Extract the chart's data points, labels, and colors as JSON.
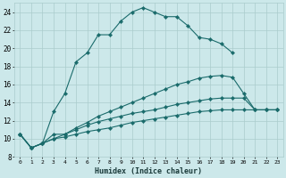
{
  "xlabel": "Humidex (Indice chaleur)",
  "bg_color": "#cce8ea",
  "grid_color": "#aacccc",
  "line_color": "#1a6b6b",
  "xlim": [
    -0.5,
    23.5
  ],
  "ylim": [
    8,
    25
  ],
  "xticks": [
    0,
    1,
    2,
    3,
    4,
    5,
    6,
    7,
    8,
    9,
    10,
    11,
    12,
    13,
    14,
    15,
    16,
    17,
    18,
    19,
    20,
    21,
    22,
    23
  ],
  "yticks": [
    8,
    10,
    12,
    14,
    16,
    18,
    20,
    22,
    24
  ],
  "line1_x": [
    0,
    1,
    2,
    3,
    4,
    5,
    6,
    7,
    8,
    9,
    10,
    11,
    12,
    13,
    14,
    15,
    16,
    17,
    18,
    19
  ],
  "line1_y": [
    10.5,
    9.0,
    9.5,
    13.0,
    15.0,
    18.5,
    19.5,
    21.5,
    21.5,
    23.0,
    24.0,
    24.5,
    24.0,
    23.5,
    23.5,
    22.5,
    21.2,
    21.0,
    20.5,
    19.5
  ],
  "line2_x": [
    0,
    1,
    2,
    3,
    4,
    5,
    6,
    7,
    8,
    9,
    10,
    11,
    12,
    13,
    14,
    15,
    16,
    17,
    18,
    19,
    20,
    21,
    22,
    23
  ],
  "line2_y": [
    10.5,
    9.0,
    9.5,
    10.5,
    10.5,
    11.2,
    11.8,
    12.5,
    13.0,
    13.5,
    14.0,
    14.5,
    15.0,
    15.5,
    16.0,
    16.3,
    16.7,
    16.9,
    17.0,
    16.8,
    15.0,
    13.2,
    13.2,
    13.2
  ],
  "line3_x": [
    0,
    1,
    2,
    3,
    4,
    5,
    6,
    7,
    8,
    9,
    10,
    11,
    12,
    13,
    14,
    15,
    16,
    17,
    18,
    19,
    20,
    21,
    22,
    23
  ],
  "line3_y": [
    10.5,
    9.0,
    9.5,
    10.0,
    10.5,
    11.0,
    11.5,
    11.9,
    12.2,
    12.5,
    12.8,
    13.0,
    13.2,
    13.5,
    13.8,
    14.0,
    14.2,
    14.4,
    14.5,
    14.5,
    14.5,
    13.2,
    13.2,
    13.2
  ],
  "line4_x": [
    0,
    1,
    2,
    3,
    4,
    5,
    6,
    7,
    8,
    9,
    10,
    11,
    12,
    13,
    14,
    15,
    16,
    17,
    18,
    19,
    20,
    21,
    22,
    23
  ],
  "line4_y": [
    10.5,
    9.0,
    9.5,
    10.0,
    10.2,
    10.5,
    10.8,
    11.0,
    11.2,
    11.5,
    11.8,
    12.0,
    12.2,
    12.4,
    12.6,
    12.8,
    13.0,
    13.1,
    13.2,
    13.2,
    13.2,
    13.2,
    13.2,
    13.2
  ]
}
